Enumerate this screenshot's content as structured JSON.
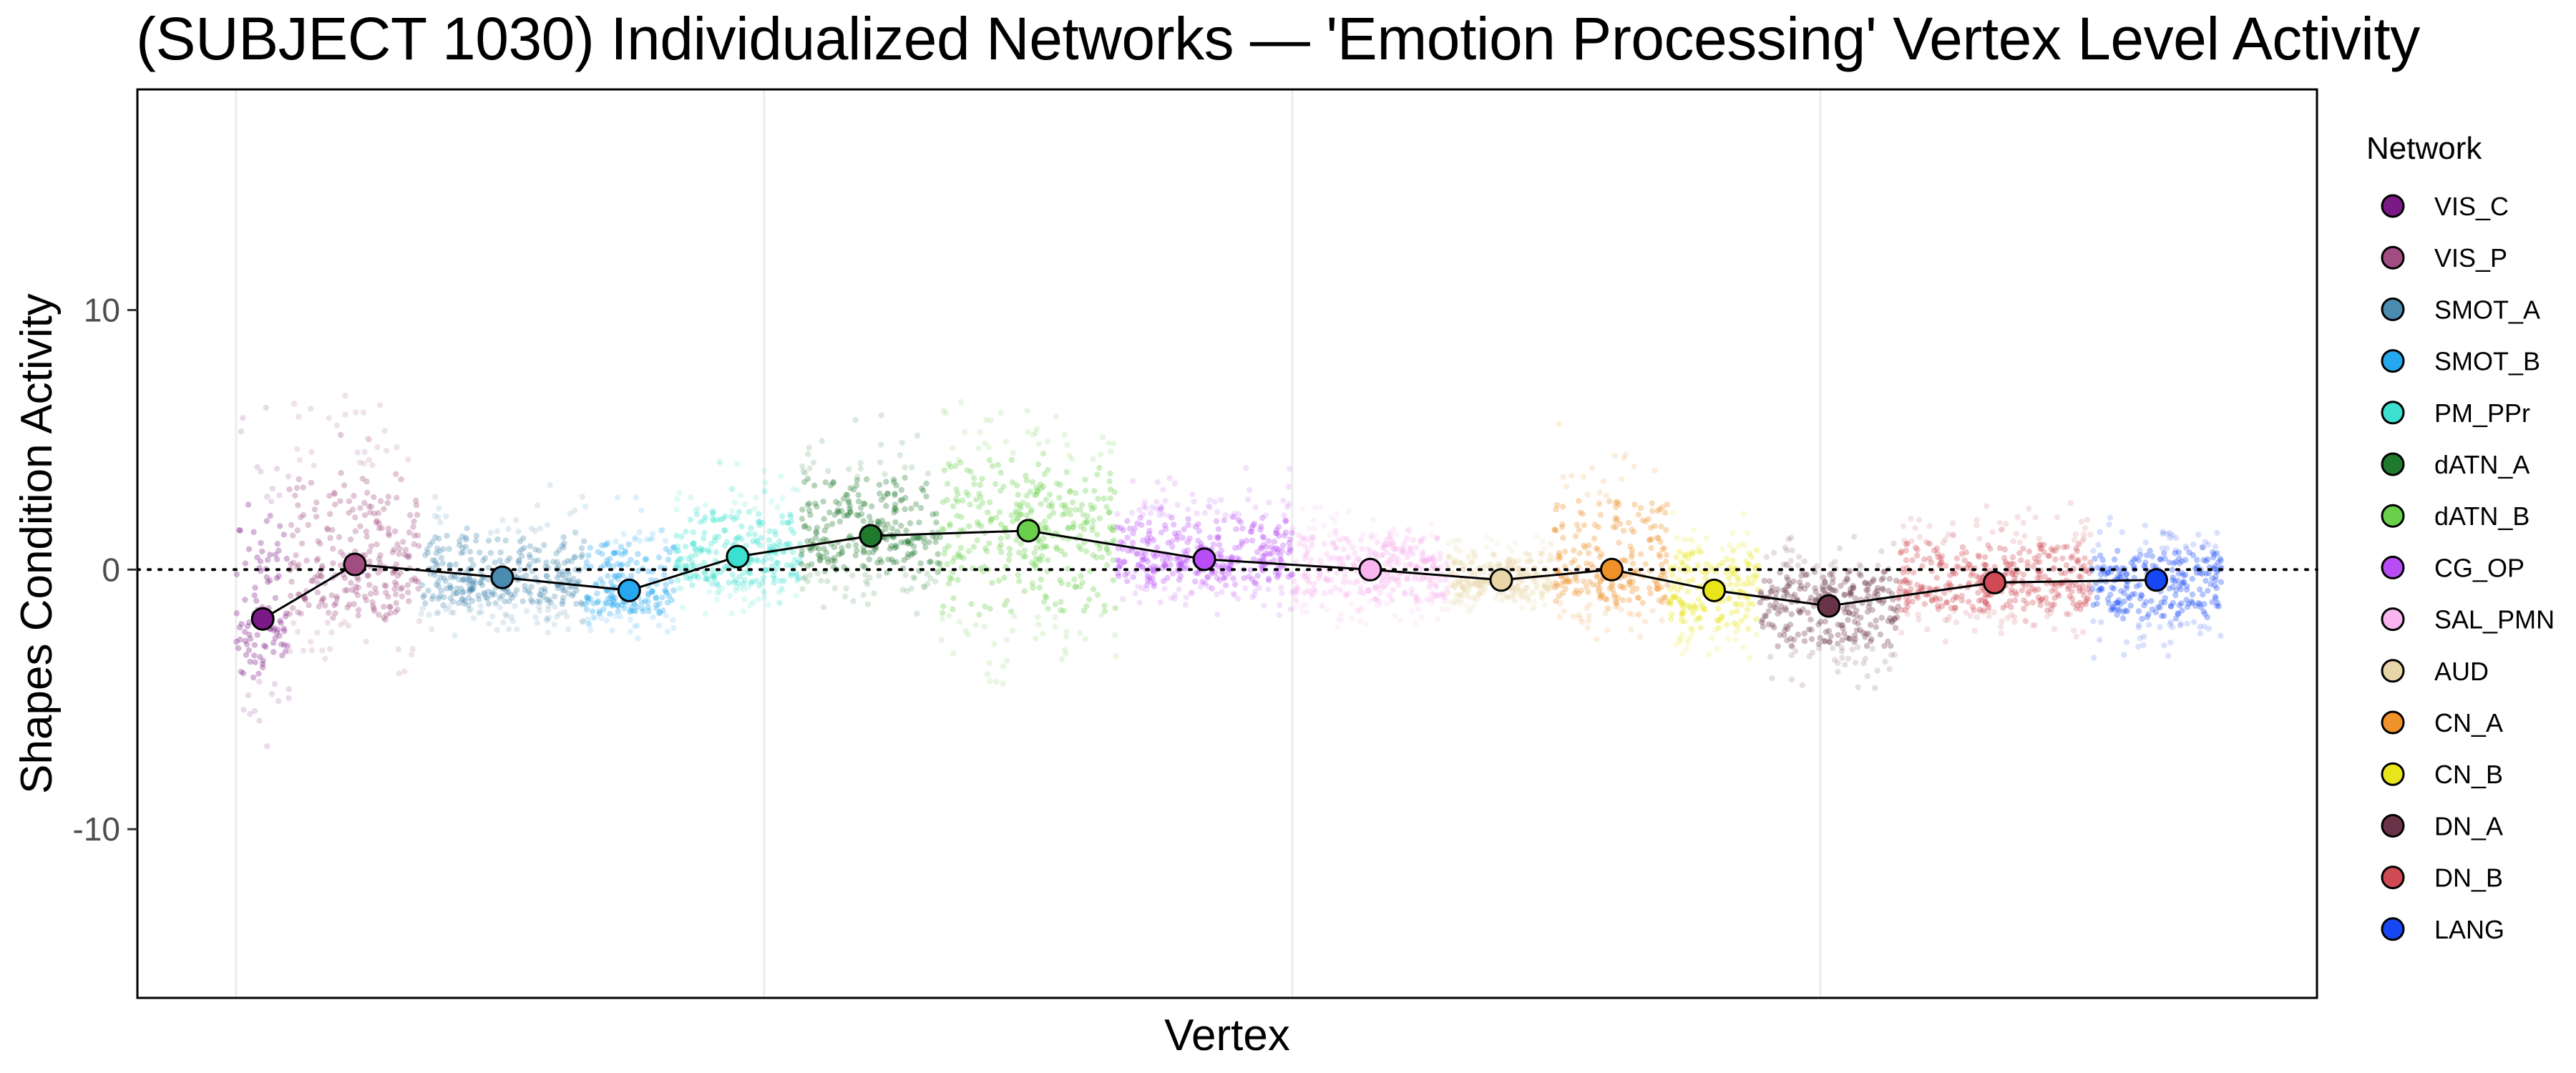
{
  "chart_data": {
    "type": "scatter",
    "title": "(SUBJECT 1030) Individualized Networks — 'Emotion Processing' Vertex Level Activity",
    "xlabel": "Vertex",
    "ylabel": "Shapes Condition Activity",
    "ylim": [
      -16.5,
      18.5
    ],
    "yticks": [
      10,
      0,
      -10
    ],
    "ytick_labels": [
      "10",
      "0",
      "-10"
    ],
    "grid": true,
    "reference_line": 0,
    "legend_title": "Network",
    "legend_position": "right",
    "series": [
      {
        "name": "VIS_C",
        "color": "#7B1A86",
        "mean": -1.9,
        "x_range": [
          0,
          130
        ],
        "band": [
          -7.2,
          8.5
        ]
      },
      {
        "name": "VIS_P",
        "color": "#A24D82",
        "mean": 0.2,
        "x_range": [
          130,
          450
        ],
        "band": [
          -4.8,
          8.5
        ]
      },
      {
        "name": "SMOT_A",
        "color": "#4A8BB0",
        "mean": -0.3,
        "x_range": [
          450,
          850
        ],
        "band": [
          -2.8,
          3.5
        ]
      },
      {
        "name": "SMOT_B",
        "color": "#25A8F0",
        "mean": -0.8,
        "x_range": [
          850,
          1070
        ],
        "band": [
          -3.0,
          3.4
        ]
      },
      {
        "name": "PM_PPr",
        "color": "#3BE0D0",
        "mean": 0.5,
        "x_range": [
          1070,
          1380
        ],
        "band": [
          -2.2,
          4.5
        ]
      },
      {
        "name": "dATN_A",
        "color": "#1F7A2E",
        "mean": 1.3,
        "x_range": [
          1380,
          1720
        ],
        "band": [
          -2.0,
          6.5
        ]
      },
      {
        "name": "dATN_B",
        "color": "#6AD04B",
        "mean": 1.5,
        "x_range": [
          1720,
          2150
        ],
        "band": [
          -6.0,
          7.8
        ]
      },
      {
        "name": "CG_OP",
        "color": "#B84CF5",
        "mean": 0.4,
        "x_range": [
          2150,
          2580
        ],
        "band": [
          -2.0,
          4.2
        ]
      },
      {
        "name": "SAL_PMN",
        "color": "#F9B5EF",
        "mean": 0.0,
        "x_range": [
          2580,
          2960
        ],
        "band": [
          -2.8,
          3.0
        ]
      },
      {
        "name": "AUD",
        "color": "#E8D6A8",
        "mean": -0.4,
        "x_range": [
          2960,
          3220
        ],
        "band": [
          -2.0,
          2.0
        ]
      },
      {
        "name": "CN_A",
        "color": "#F0922A",
        "mean": 0.0,
        "x_range": [
          3220,
          3500
        ],
        "band": [
          -3.0,
          6.2
        ]
      },
      {
        "name": "CN_B",
        "color": "#E8E61A",
        "mean": -0.8,
        "x_range": [
          3500,
          3720
        ],
        "band": [
          -4.3,
          2.8
        ]
      },
      {
        "name": "DN_A",
        "color": "#6A3448",
        "mean": -1.4,
        "x_range": [
          3720,
          4060
        ],
        "band": [
          -5.0,
          1.8
        ]
      },
      {
        "name": "DN_B",
        "color": "#CF4A55",
        "mean": -0.5,
        "x_range": [
          4060,
          4530
        ],
        "band": [
          -3.0,
          3.0
        ]
      },
      {
        "name": "LANG",
        "color": "#1747F5",
        "mean": -0.4,
        "x_range": [
          4530,
          4850
        ],
        "band": [
          -4.0,
          2.2
        ]
      }
    ]
  }
}
